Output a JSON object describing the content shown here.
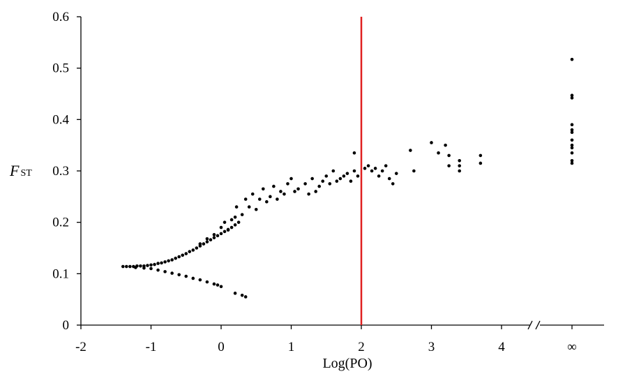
{
  "chart_data": {
    "type": "scatter",
    "xlabel": "Log(PO)",
    "ylabel": {
      "main": "F",
      "sub": "ST"
    },
    "xlim": [
      -2,
      5
    ],
    "ylim": [
      0,
      0.6
    ],
    "x_ticks": [
      -2,
      -1,
      0,
      1,
      2,
      3,
      4
    ],
    "x_tick_labels": [
      "-2",
      "-1",
      "0",
      "1",
      "2",
      "3",
      "4"
    ],
    "infinity_tick_label": "∞",
    "y_ticks": [
      0,
      0.1,
      0.2,
      0.3,
      0.4,
      0.5,
      0.6
    ],
    "y_tick_labels": [
      "0",
      "0.1",
      "0.2",
      "0.3",
      "0.4",
      "0.5",
      "0.6"
    ],
    "axis_break": true,
    "grid": false,
    "reference_line": {
      "x": 2,
      "color": "#e02020"
    },
    "point_color": "#000000",
    "series": [
      {
        "points": [
          [
            -1.4,
            0.114
          ],
          [
            -1.35,
            0.114
          ],
          [
            -1.3,
            0.114
          ],
          [
            -1.25,
            0.114
          ],
          [
            -1.2,
            0.115
          ],
          [
            -1.15,
            0.115
          ],
          [
            -1.1,
            0.115
          ],
          [
            -1.05,
            0.116
          ],
          [
            -1.0,
            0.117
          ],
          [
            -0.95,
            0.118
          ],
          [
            -0.9,
            0.12
          ],
          [
            -0.85,
            0.121
          ],
          [
            -0.8,
            0.123
          ],
          [
            -0.75,
            0.125
          ],
          [
            -0.7,
            0.127
          ],
          [
            -0.65,
            0.13
          ],
          [
            -0.6,
            0.133
          ],
          [
            -0.55,
            0.136
          ],
          [
            -0.5,
            0.139
          ],
          [
            -0.45,
            0.143
          ],
          [
            -0.4,
            0.146
          ],
          [
            -0.35,
            0.15
          ],
          [
            -0.3,
            0.154
          ],
          [
            -0.25,
            0.158
          ],
          [
            -0.2,
            0.162
          ],
          [
            -0.15,
            0.166
          ],
          [
            -0.1,
            0.17
          ],
          [
            -0.05,
            0.174
          ],
          [
            0.0,
            0.178
          ],
          [
            0.05,
            0.182
          ],
          [
            0.1,
            0.186
          ],
          [
            0.15,
            0.19
          ],
          [
            0.2,
            0.195
          ],
          [
            -1.22,
            0.112
          ],
          [
            -1.1,
            0.111
          ],
          [
            -1.0,
            0.11
          ],
          [
            -0.9,
            0.107
          ],
          [
            -0.8,
            0.104
          ],
          [
            -0.7,
            0.101
          ],
          [
            -0.6,
            0.098
          ],
          [
            -0.5,
            0.095
          ],
          [
            -0.4,
            0.091
          ],
          [
            -0.3,
            0.088
          ],
          [
            -0.2,
            0.084
          ],
          [
            -0.1,
            0.08
          ],
          [
            -0.05,
            0.078
          ],
          [
            0.0,
            0.075
          ],
          [
            0.2,
            0.062
          ],
          [
            0.3,
            0.058
          ],
          [
            0.35,
            0.055
          ],
          [
            -0.3,
            0.158
          ],
          [
            -0.2,
            0.168
          ],
          [
            -0.1,
            0.176
          ],
          [
            0.0,
            0.19
          ],
          [
            0.05,
            0.2
          ],
          [
            0.1,
            0.185
          ],
          [
            0.15,
            0.205
          ],
          [
            0.2,
            0.21
          ],
          [
            0.22,
            0.23
          ],
          [
            0.25,
            0.2
          ],
          [
            0.3,
            0.215
          ],
          [
            0.35,
            0.245
          ],
          [
            0.4,
            0.23
          ],
          [
            0.45,
            0.255
          ],
          [
            0.5,
            0.225
          ],
          [
            0.55,
            0.245
          ],
          [
            0.6,
            0.265
          ],
          [
            0.65,
            0.24
          ],
          [
            0.7,
            0.25
          ],
          [
            0.75,
            0.27
          ],
          [
            0.8,
            0.245
          ],
          [
            0.85,
            0.26
          ],
          [
            0.9,
            0.255
          ],
          [
            0.95,
            0.275
          ],
          [
            1.0,
            0.285
          ],
          [
            1.05,
            0.26
          ],
          [
            1.1,
            0.265
          ],
          [
            1.2,
            0.275
          ],
          [
            1.25,
            0.255
          ],
          [
            1.3,
            0.285
          ],
          [
            1.35,
            0.26
          ],
          [
            1.4,
            0.27
          ],
          [
            1.45,
            0.28
          ],
          [
            1.5,
            0.29
          ],
          [
            1.55,
            0.275
          ],
          [
            1.6,
            0.3
          ],
          [
            1.65,
            0.28
          ],
          [
            1.7,
            0.285
          ],
          [
            1.75,
            0.29
          ],
          [
            1.8,
            0.295
          ],
          [
            1.85,
            0.28
          ],
          [
            1.9,
            0.3
          ],
          [
            1.95,
            0.29
          ],
          [
            1.9,
            0.335
          ],
          [
            2.05,
            0.305
          ],
          [
            2.1,
            0.31
          ],
          [
            2.15,
            0.3
          ],
          [
            2.2,
            0.305
          ],
          [
            2.25,
            0.29
          ],
          [
            2.3,
            0.3
          ],
          [
            2.35,
            0.31
          ],
          [
            2.4,
            0.285
          ],
          [
            2.45,
            0.275
          ],
          [
            2.5,
            0.295
          ],
          [
            2.7,
            0.34
          ],
          [
            2.75,
            0.3
          ],
          [
            3.0,
            0.355
          ],
          [
            3.1,
            0.335
          ],
          [
            3.2,
            0.35
          ],
          [
            3.25,
            0.33
          ],
          [
            3.4,
            0.32
          ],
          [
            3.4,
            0.31
          ],
          [
            3.7,
            0.33
          ],
          [
            3.7,
            0.315
          ],
          [
            3.25,
            0.31
          ],
          [
            3.4,
            0.3
          ]
        ],
        "infinity_points": [
          0.517,
          0.447,
          0.442,
          0.39,
          0.38,
          0.375,
          0.36,
          0.35,
          0.345,
          0.335,
          0.32,
          0.315
        ]
      }
    ]
  }
}
